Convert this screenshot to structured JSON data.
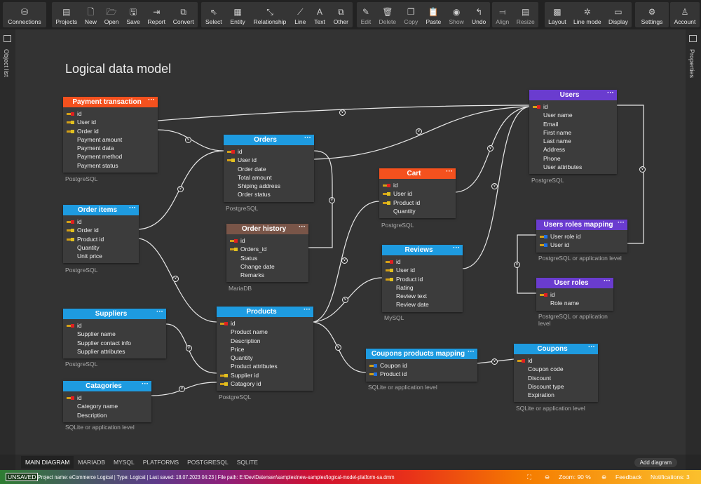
{
  "toolbar": {
    "groups": [
      [
        {
          "label": "Connections",
          "icon": "database-icon",
          "glyph": "⛁"
        }
      ],
      [
        {
          "label": "Projects",
          "icon": "projects-icon",
          "glyph": "▤"
        },
        {
          "label": "New",
          "icon": "new-file-icon",
          "glyph": "🗋"
        },
        {
          "label": "Open",
          "icon": "folder-open-icon",
          "glyph": "🗁"
        },
        {
          "label": "Save",
          "icon": "save-icon",
          "glyph": "🖫"
        },
        {
          "label": "Report",
          "icon": "report-icon",
          "glyph": "⇥"
        },
        {
          "label": "Convert",
          "icon": "convert-icon",
          "glyph": "⧉"
        }
      ],
      [
        {
          "label": "Select",
          "icon": "cursor-icon",
          "glyph": "⇖"
        },
        {
          "label": "Entity",
          "icon": "entity-icon",
          "glyph": "▦"
        },
        {
          "label": "Relationship",
          "icon": "relationship-icon",
          "glyph": "⤡"
        },
        {
          "label": "Line",
          "icon": "line-icon",
          "glyph": "⟋"
        },
        {
          "label": "Text",
          "icon": "text-icon",
          "glyph": "A"
        },
        {
          "label": "Other",
          "icon": "other-icon",
          "glyph": "⧉"
        }
      ],
      [
        {
          "label": "Edit",
          "icon": "pencil-icon",
          "glyph": "✎",
          "dim": true
        },
        {
          "label": "Delete",
          "icon": "trash-icon",
          "glyph": "🗑",
          "dim": true
        },
        {
          "label": "Copy",
          "icon": "copy-icon",
          "glyph": "❐",
          "dim": true
        },
        {
          "label": "Paste",
          "icon": "paste-icon",
          "glyph": "📋"
        },
        {
          "label": "Show",
          "icon": "eye-icon",
          "glyph": "◉",
          "dim": true
        },
        {
          "label": "Undo",
          "icon": "undo-icon",
          "glyph": "↰"
        }
      ],
      [
        {
          "label": "Align",
          "icon": "align-icon",
          "glyph": "⫤",
          "dim": true
        },
        {
          "label": "Resize",
          "icon": "resize-icon",
          "glyph": "▤",
          "dim": true
        }
      ],
      [
        {
          "label": "Layout",
          "icon": "layout-icon",
          "glyph": "▩"
        },
        {
          "label": "Line mode",
          "icon": "line-mode-icon",
          "glyph": "✲"
        },
        {
          "label": "Display",
          "icon": "display-icon",
          "glyph": "▭"
        }
      ],
      [
        {
          "label": "Settings",
          "icon": "gear-icon",
          "glyph": "⚙"
        }
      ],
      [
        {
          "label": "Account",
          "icon": "user-icon",
          "glyph": "♙"
        }
      ]
    ]
  },
  "sidebar_left": {
    "label": "Object list"
  },
  "sidebar_right": {
    "label": "Properties"
  },
  "diagram": {
    "title": "Logical data model",
    "colors": {
      "orange": "#f4511e",
      "blue": "#1e9be0",
      "purple": "#6a3ccf",
      "brown": "#795548"
    },
    "entities": [
      {
        "name": "Payment transaction",
        "color": "orange",
        "db": "PostgreSQL",
        "rows": [
          [
            "id",
            "pk"
          ],
          [
            "User id",
            "fk"
          ],
          [
            "Order id",
            "fk"
          ],
          [
            "Payment amount",
            ""
          ],
          [
            "Payment data",
            ""
          ],
          [
            "Payment method",
            ""
          ],
          [
            "Payment status",
            ""
          ]
        ]
      },
      {
        "name": "Orders",
        "color": "blue",
        "db": "PostgreSQL",
        "rows": [
          [
            "id",
            "pk"
          ],
          [
            "User id",
            "fk"
          ],
          [
            "Order date",
            ""
          ],
          [
            "Total amount",
            ""
          ],
          [
            "Shiping address",
            ""
          ],
          [
            "Order status",
            ""
          ]
        ]
      },
      {
        "name": "Order items",
        "color": "blue",
        "db": "PostgreSQL",
        "rows": [
          [
            "id",
            "pk"
          ],
          [
            "Order id",
            "fk"
          ],
          [
            "Product id",
            "fk"
          ],
          [
            "Quantity",
            ""
          ],
          [
            "Unit price",
            ""
          ]
        ]
      },
      {
        "name": "Order history",
        "color": "brown",
        "db": "MariaDB",
        "rows": [
          [
            "id",
            "pk"
          ],
          [
            "Orders_id",
            "fk"
          ],
          [
            "Status",
            ""
          ],
          [
            "Change date",
            ""
          ],
          [
            "Remarks",
            ""
          ]
        ]
      },
      {
        "name": "Cart",
        "color": "orange",
        "db": "PostgreSQL",
        "rows": [
          [
            "id",
            "pk"
          ],
          [
            "User id",
            "fk"
          ],
          [
            "Product id",
            "fk"
          ],
          [
            "Quantity",
            ""
          ]
        ]
      },
      {
        "name": "Reviews",
        "color": "blue",
        "db": "MySQL",
        "rows": [
          [
            "id",
            "pk"
          ],
          [
            "User id",
            "fk"
          ],
          [
            "Product id",
            "fk"
          ],
          [
            "Rating",
            ""
          ],
          [
            "Review text",
            ""
          ],
          [
            "Review date",
            ""
          ]
        ]
      },
      {
        "name": "Users",
        "color": "purple",
        "db": "PostgreSQL",
        "rows": [
          [
            "id",
            "pk"
          ],
          [
            "User name",
            ""
          ],
          [
            "Email",
            ""
          ],
          [
            "First name",
            ""
          ],
          [
            "Last name",
            ""
          ],
          [
            "Address",
            ""
          ],
          [
            "Phone",
            ""
          ],
          [
            "User attributes",
            ""
          ]
        ]
      },
      {
        "name": "Users roles mapping",
        "color": "purple",
        "db": "PostgreSQL or application level",
        "rows": [
          [
            "User role id",
            "pfk"
          ],
          [
            "User id",
            "pfk"
          ]
        ]
      },
      {
        "name": "User roles",
        "color": "purple",
        "db": "PostgreSQL or application level",
        "rows": [
          [
            "id",
            "pk"
          ],
          [
            "Role name",
            ""
          ]
        ]
      },
      {
        "name": "Suppliers",
        "color": "blue",
        "db": "PostgreSQL",
        "rows": [
          [
            "id",
            "pk"
          ],
          [
            "Supplier name",
            ""
          ],
          [
            "Supplier contact info",
            ""
          ],
          [
            "Supplier attributes",
            ""
          ]
        ]
      },
      {
        "name": "Products",
        "color": "blue",
        "db": "PostgreSQL",
        "rows": [
          [
            "id",
            "pk"
          ],
          [
            "Product name",
            ""
          ],
          [
            "Description",
            ""
          ],
          [
            "Price",
            ""
          ],
          [
            "Quantity",
            ""
          ],
          [
            "Product attributes",
            ""
          ],
          [
            "Supplier id",
            "fk"
          ],
          [
            "Catagory id",
            "fk"
          ]
        ]
      },
      {
        "name": "Catagories",
        "color": "blue",
        "db": "SQLite or application level",
        "rows": [
          [
            "id",
            "pk"
          ],
          [
            "Category name",
            ""
          ],
          [
            "Description",
            ""
          ]
        ]
      },
      {
        "name": "Coupons products mapping",
        "color": "blue",
        "db": "SQLite or application level",
        "rows": [
          [
            "Coupon id",
            "pfk"
          ],
          [
            "Product id",
            "pfk"
          ]
        ]
      },
      {
        "name": "Coupons",
        "color": "blue",
        "db": "SQLite or application level",
        "rows": [
          [
            "id",
            "pk"
          ],
          [
            "Coupon code",
            ""
          ],
          [
            "Discount",
            ""
          ],
          [
            "Discount type",
            ""
          ],
          [
            "Expiration",
            ""
          ]
        ]
      }
    ]
  },
  "tabs": [
    {
      "label": "MAIN DIAGRAM",
      "active": true
    },
    {
      "label": "MARIADB"
    },
    {
      "label": "MYSQL"
    },
    {
      "label": "PLATFORMS"
    },
    {
      "label": "POSTGRESQL"
    },
    {
      "label": "SQLITE"
    }
  ],
  "add_diagram": "Add diagram",
  "status": {
    "unsaved": "UNSAVED",
    "text": "Project name: eCommerce Logical   | Type: Logical | Last saved: 18.07.2023 04:23   | File path: E:\\Dev\\Datensen\\samples\\new-samples\\logical-model-platform-sa.dmm",
    "zoom": "Zoom: 90 %",
    "feedback": "Feedback",
    "notifications": "Notifications: 3"
  }
}
